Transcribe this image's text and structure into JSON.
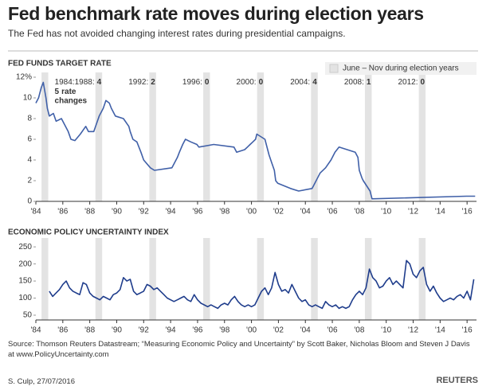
{
  "header": {
    "title": "Fed benchmark rate moves during election years",
    "subtitle": "The Fed has not avoided changing interest rates during presidential campaigns."
  },
  "footer": {
    "source": "Source: Thomson Reuters Datastream; “Measuring Economic Policy and Uncertainty” by Scott Baker, Nicholas Bloom and Steven J Davis at www.PolicyUncertainty.com",
    "credit": "S. Culp, 27/07/2016",
    "logo": "REUTERS"
  },
  "chart_data": [
    {
      "type": "line",
      "title": "FED FUNDS TARGET RATE",
      "color": "#4060a8",
      "legend": "June – Nov during election years",
      "legend_position": "upper right",
      "band_color": "#e3e3e3",
      "bands": [
        {
          "start": 1984.42,
          "end": 1984.92,
          "label": "1984:",
          "changes": 5,
          "note": "rate changes"
        },
        {
          "start": 1988.42,
          "end": 1988.92,
          "label": "1988:",
          "changes": 4
        },
        {
          "start": 1992.42,
          "end": 1992.92,
          "label": "1992:",
          "changes": 2
        },
        {
          "start": 1996.42,
          "end": 1996.92,
          "label": "1996:",
          "changes": 0
        },
        {
          "start": 2000.42,
          "end": 2000.92,
          "label": "2000:",
          "changes": 0
        },
        {
          "start": 2004.42,
          "end": 2004.92,
          "label": "2004:",
          "changes": 4
        },
        {
          "start": 2008.42,
          "end": 2008.92,
          "label": "2008:",
          "changes": 1
        },
        {
          "start": 2012.42,
          "end": 2012.92,
          "label": "2012:",
          "changes": 0
        }
      ],
      "xlim": [
        1984,
        2016.7
      ],
      "xticks": [
        {
          "value": 1984,
          "label": "'84"
        },
        {
          "value": 1986,
          "label": "'86"
        },
        {
          "value": 1988,
          "label": "'88"
        },
        {
          "value": 1990,
          "label": "'90"
        },
        {
          "value": 1992,
          "label": "'92"
        },
        {
          "value": 1994,
          "label": "'94"
        },
        {
          "value": 1996,
          "label": "'96"
        },
        {
          "value": 1998,
          "label": "'98"
        },
        {
          "value": 2000,
          "label": "'00"
        },
        {
          "value": 2002,
          "label": "'02"
        },
        {
          "value": 2004,
          "label": "'04"
        },
        {
          "value": 2006,
          "label": "'06"
        },
        {
          "value": 2008,
          "label": "'08"
        },
        {
          "value": 2010,
          "label": "'10"
        },
        {
          "value": 2012,
          "label": "'12"
        },
        {
          "value": 2014,
          "label": "'14"
        },
        {
          "value": 2016,
          "label": "'16"
        }
      ],
      "ylim": [
        0,
        12
      ],
      "yticks": [
        0,
        2,
        4,
        6,
        8,
        10,
        {
          "value": 12,
          "label": "12%"
        }
      ],
      "x": [
        1984.0,
        1984.2,
        1984.4,
        1984.55,
        1984.75,
        1984.85,
        1985.0,
        1985.3,
        1985.5,
        1985.9,
        1986.2,
        1986.4,
        1986.6,
        1986.9,
        1987.3,
        1987.7,
        1987.9,
        1988.3,
        1988.5,
        1988.7,
        1989.0,
        1989.2,
        1989.45,
        1989.6,
        1989.9,
        1990.5,
        1990.9,
        1991.0,
        1991.2,
        1991.5,
        1991.8,
        1992.0,
        1992.5,
        1992.8,
        1994.1,
        1994.3,
        1994.5,
        1994.65,
        1994.9,
        1995.1,
        1995.5,
        1995.95,
        1996.1,
        1997.2,
        1998.7,
        1998.8,
        1998.9,
        1999.5,
        1999.7,
        1999.9,
        2000.1,
        2000.3,
        2000.4,
        2001.0,
        2001.1,
        2001.3,
        2001.5,
        2001.7,
        2001.8,
        2001.95,
        2002.9,
        2003.5,
        2004.5,
        2004.7,
        2004.9,
        2005.1,
        2005.5,
        2005.9,
        2006.2,
        2006.5,
        2007.7,
        2007.9,
        2008.0,
        2008.2,
        2008.3,
        2008.8,
        2008.95,
        2015.95,
        2016.6
      ],
      "values": [
        9.5,
        10.0,
        11.0,
        11.5,
        10.0,
        9.0,
        8.25,
        8.5,
        7.75,
        8.0,
        7.25,
        6.75,
        6.0,
        5.875,
        6.5,
        7.25,
        6.75,
        6.75,
        7.5,
        8.25,
        9.0,
        9.75,
        9.5,
        9.0,
        8.25,
        8.0,
        7.25,
        6.75,
        6.0,
        5.75,
        4.75,
        4.0,
        3.25,
        3.0,
        3.25,
        3.75,
        4.25,
        4.75,
        5.5,
        6.0,
        5.75,
        5.5,
        5.25,
        5.5,
        5.25,
        5.0,
        4.75,
        5.0,
        5.25,
        5.5,
        5.75,
        6.0,
        6.5,
        6.0,
        5.5,
        4.5,
        3.75,
        3.0,
        2.0,
        1.75,
        1.25,
        1.0,
        1.25,
        1.75,
        2.25,
        2.75,
        3.25,
        4.0,
        4.75,
        5.25,
        4.75,
        4.25,
        3.0,
        2.25,
        2.0,
        1.0,
        0.25,
        0.5,
        0.5
      ]
    },
    {
      "type": "line",
      "title": "ECONOMIC POLICY UNCERTAINTY INDEX",
      "color": "#1f3d8c",
      "band_color": "#e3e3e3",
      "bands": [
        {
          "start": 1984.42,
          "end": 1984.92
        },
        {
          "start": 1988.42,
          "end": 1988.92
        },
        {
          "start": 1992.42,
          "end": 1992.92
        },
        {
          "start": 1996.42,
          "end": 1996.92
        },
        {
          "start": 2000.42,
          "end": 2000.92
        },
        {
          "start": 2004.42,
          "end": 2004.92
        },
        {
          "start": 2008.42,
          "end": 2008.92
        },
        {
          "start": 2012.42,
          "end": 2012.92
        }
      ],
      "xlim": [
        1984,
        2016.7
      ],
      "xticks": [
        {
          "value": 1984,
          "label": "'84"
        },
        {
          "value": 1986,
          "label": "'86"
        },
        {
          "value": 1988,
          "label": "'88"
        },
        {
          "value": 1990,
          "label": "'90"
        },
        {
          "value": 1992,
          "label": "'92"
        },
        {
          "value": 1994,
          "label": "'94"
        },
        {
          "value": 1996,
          "label": "'96"
        },
        {
          "value": 1998,
          "label": "'98"
        },
        {
          "value": 2000,
          "label": "'00"
        },
        {
          "value": 2002,
          "label": "'02"
        },
        {
          "value": 2004,
          "label": "'04"
        },
        {
          "value": 2006,
          "label": "'06"
        },
        {
          "value": 2008,
          "label": "'08"
        },
        {
          "value": 2010,
          "label": "'10"
        },
        {
          "value": 2012,
          "label": "'12"
        },
        {
          "value": 2014,
          "label": "'14"
        },
        {
          "value": 2016,
          "label": "'16"
        }
      ],
      "ylim": [
        36,
        262
      ],
      "yticks": [
        50,
        100,
        150,
        200,
        250
      ],
      "x": [
        1985.0,
        1985.25,
        1985.5,
        1985.75,
        1986.0,
        1986.25,
        1986.5,
        1986.75,
        1987.0,
        1987.25,
        1987.5,
        1987.75,
        1988.0,
        1988.25,
        1988.5,
        1988.75,
        1989.0,
        1989.25,
        1989.5,
        1989.75,
        1990.0,
        1990.25,
        1990.5,
        1990.75,
        1991.0,
        1991.25,
        1991.5,
        1991.75,
        1992.0,
        1992.25,
        1992.5,
        1992.75,
        1993.0,
        1993.25,
        1993.5,
        1993.75,
        1994.0,
        1994.25,
        1994.5,
        1994.75,
        1995.0,
        1995.25,
        1995.5,
        1995.75,
        1996.0,
        1996.25,
        1996.5,
        1996.75,
        1997.0,
        1997.25,
        1997.5,
        1997.75,
        1998.0,
        1998.25,
        1998.5,
        1998.75,
        1999.0,
        1999.25,
        1999.5,
        1999.75,
        2000.0,
        2000.25,
        2000.5,
        2000.75,
        2001.0,
        2001.25,
        2001.5,
        2001.75,
        2002.0,
        2002.25,
        2002.5,
        2002.75,
        2003.0,
        2003.25,
        2003.5,
        2003.75,
        2004.0,
        2004.25,
        2004.5,
        2004.75,
        2005.0,
        2005.25,
        2005.5,
        2005.75,
        2006.0,
        2006.25,
        2006.5,
        2006.75,
        2007.0,
        2007.25,
        2007.5,
        2007.75,
        2008.0,
        2008.25,
        2008.5,
        2008.75,
        2009.0,
        2009.25,
        2009.5,
        2009.75,
        2010.0,
        2010.25,
        2010.5,
        2010.75,
        2011.0,
        2011.25,
        2011.5,
        2011.75,
        2012.0,
        2012.25,
        2012.5,
        2012.75,
        2013.0,
        2013.25,
        2013.5,
        2013.75,
        2014.0,
        2014.25,
        2014.5,
        2014.75,
        2015.0,
        2015.25,
        2015.5,
        2015.75,
        2016.0,
        2016.25,
        2016.5
      ],
      "values": [
        120,
        105,
        115,
        125,
        140,
        150,
        130,
        120,
        115,
        110,
        145,
        140,
        115,
        105,
        100,
        95,
        105,
        100,
        95,
        110,
        115,
        125,
        160,
        150,
        155,
        120,
        110,
        115,
        120,
        140,
        135,
        125,
        130,
        120,
        110,
        100,
        95,
        90,
        95,
        100,
        105,
        95,
        90,
        110,
        95,
        85,
        80,
        75,
        80,
        75,
        70,
        80,
        85,
        80,
        95,
        105,
        90,
        80,
        75,
        80,
        75,
        80,
        100,
        120,
        130,
        110,
        130,
        175,
        140,
        120,
        125,
        115,
        140,
        120,
        100,
        90,
        95,
        80,
        75,
        80,
        75,
        70,
        90,
        80,
        75,
        80,
        70,
        75,
        70,
        75,
        95,
        110,
        120,
        110,
        130,
        185,
        160,
        150,
        130,
        135,
        150,
        160,
        140,
        150,
        140,
        130,
        210,
        200,
        170,
        160,
        180,
        190,
        140,
        120,
        135,
        115,
        100,
        90,
        95,
        100,
        95,
        105,
        110,
        100,
        120,
        95,
        155
      ]
    }
  ]
}
